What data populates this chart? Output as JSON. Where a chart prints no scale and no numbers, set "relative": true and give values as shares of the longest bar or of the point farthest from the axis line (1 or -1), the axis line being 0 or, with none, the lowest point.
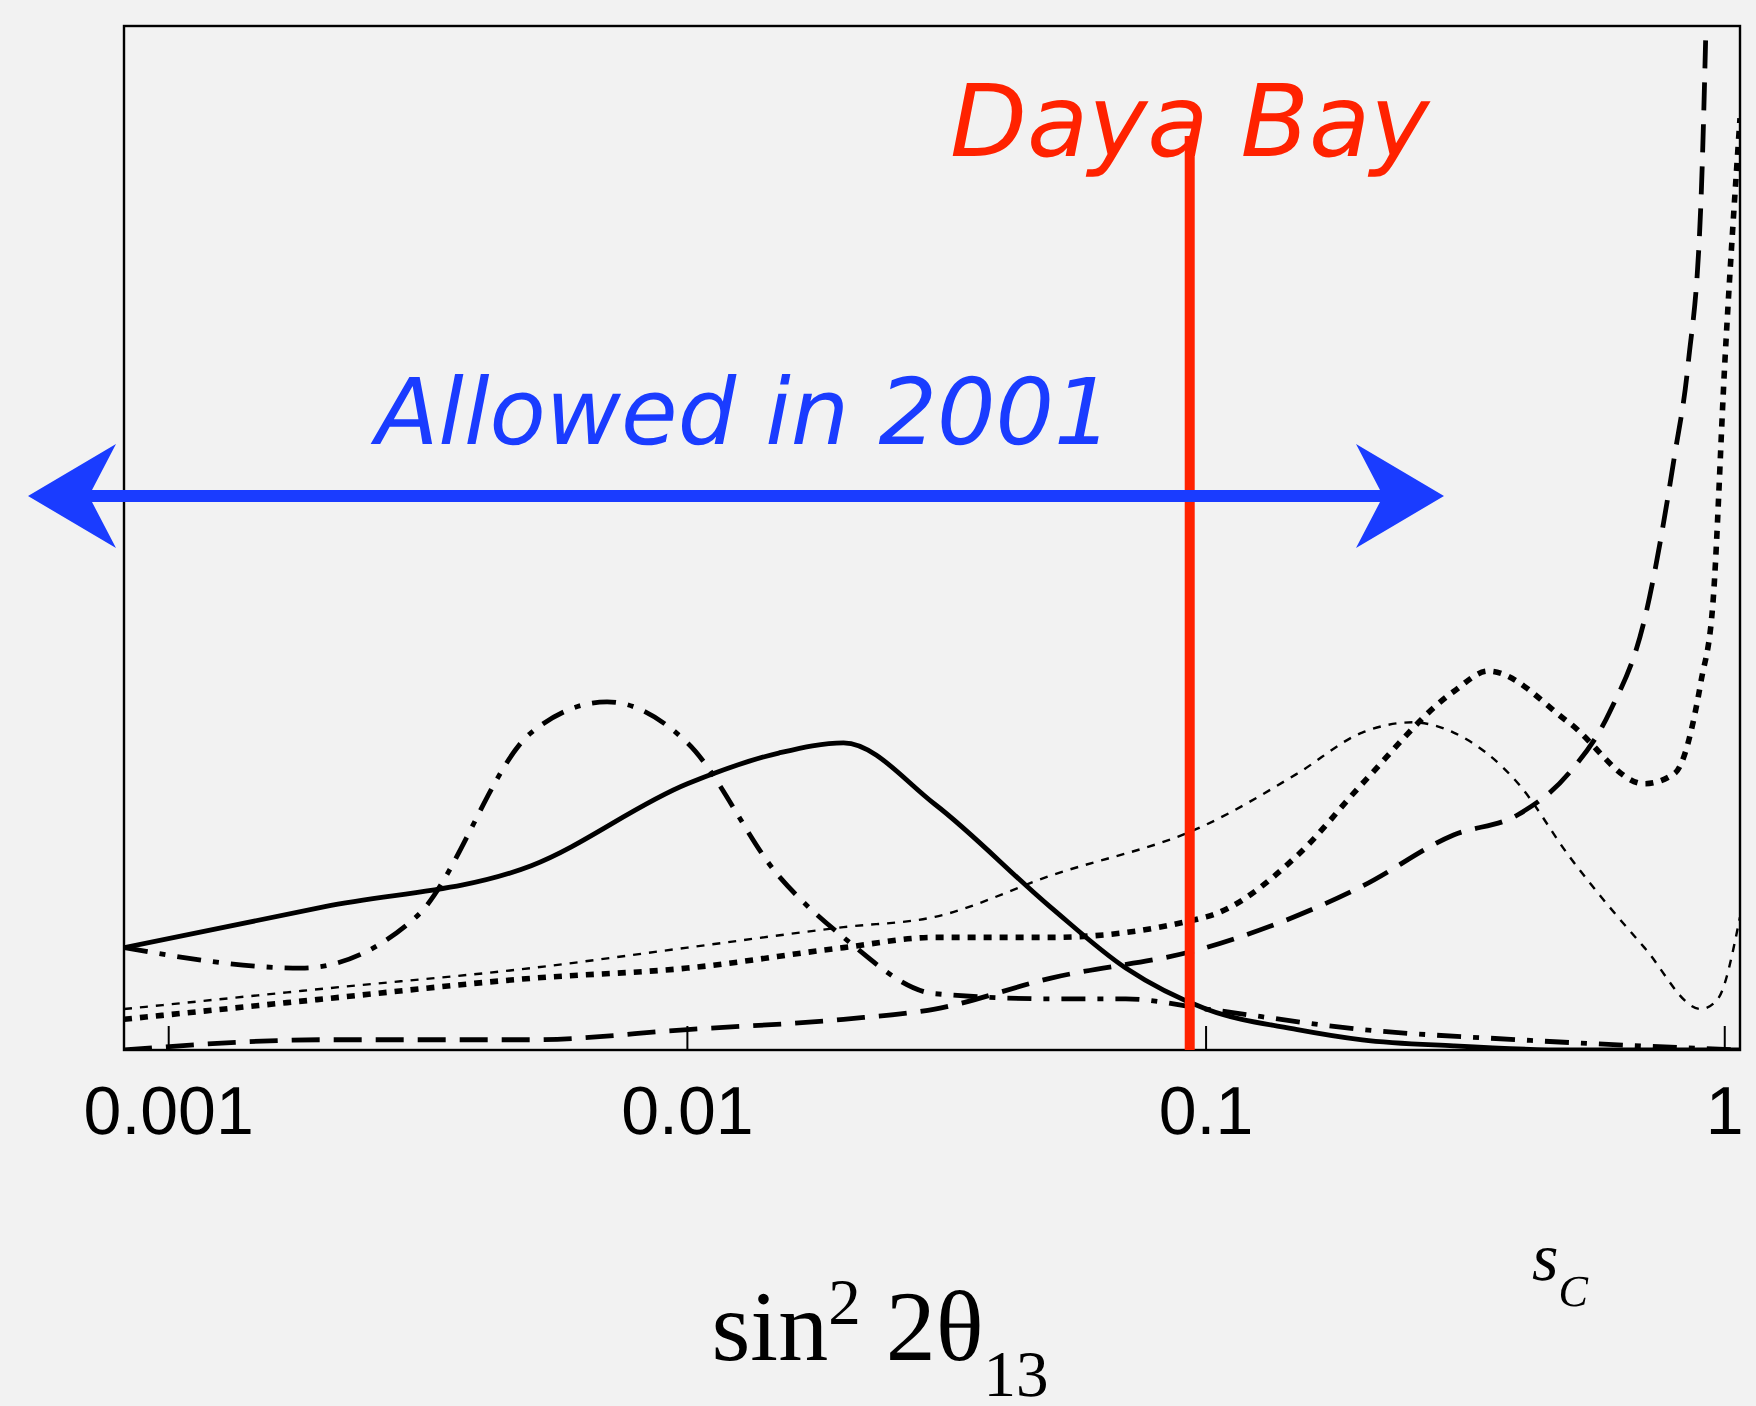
{
  "chart_data": {
    "type": "line",
    "relative": true,
    "xlabel": "sin$^{2}$ 2θ$_{13}$",
    "log": "x",
    "xlim": [
      0.00082,
      1.07
    ],
    "xticks": [
      0.001,
      0.01,
      0.1,
      1
    ],
    "grid": false,
    "series": [
      {
        "color": "#000000",
        "line_style": "solid",
        "x": [
          0.00082,
          0.002,
          0.005,
          0.01,
          0.015,
          0.02,
          0.03,
          0.05,
          0.07,
          0.1,
          0.15,
          0.2,
          0.3,
          0.5,
          1.07
        ],
        "values": [
          0.1,
          0.14,
          0.18,
          0.26,
          0.29,
          0.3,
          0.24,
          0.14,
          0.08,
          0.04,
          0.02,
          0.01,
          0.004,
          0,
          0
        ]
      },
      {
        "color": "#000000",
        "line_style": "dashdot",
        "x": [
          0.00082,
          0.0018,
          0.003,
          0.005,
          0.007,
          0.01,
          0.015,
          0.02,
          0.03,
          0.05,
          0.07,
          0.1,
          0.2,
          0.4,
          1.07
        ],
        "values": [
          0.1,
          0.08,
          0.13,
          0.31,
          0.34,
          0.3,
          0.17,
          0.11,
          0.055,
          0.05,
          0.05,
          0.04,
          0.02,
          0.01,
          0
        ]
      },
      {
        "color": "#000000",
        "line_style": "dashed",
        "x": [
          0.00082,
          0.002,
          0.005,
          0.01,
          0.02,
          0.03,
          0.05,
          0.1,
          0.2,
          0.3,
          0.4,
          0.5,
          0.6,
          0.7,
          0.8,
          0.85,
          0.9,
          0.92
        ],
        "values": [
          0,
          0.01,
          0.01,
          0.02,
          0.03,
          0.04,
          0.07,
          0.1,
          0.16,
          0.21,
          0.23,
          0.27,
          0.33,
          0.42,
          0.58,
          0.67,
          0.83,
          1
        ]
      },
      {
        "color": "#000000",
        "line_style": "dotted",
        "x": [
          0.00082,
          0.002,
          0.005,
          0.01,
          0.02,
          0.03,
          0.05,
          0.1,
          0.15,
          0.2,
          0.3,
          0.35,
          0.5,
          0.7,
          0.8,
          0.9,
          0.95,
          1,
          1.07
        ],
        "values": [
          0.03,
          0.05,
          0.07,
          0.08,
          0.1,
          0.11,
          0.11,
          0.13,
          0.19,
          0.26,
          0.35,
          0.37,
          0.32,
          0.26,
          0.27,
          0.36,
          0.44,
          0.67,
          0.91
        ]
      },
      {
        "color": "#000000",
        "line_style": "dotted",
        "x": [
          0.00082,
          0.002,
          0.005,
          0.01,
          0.02,
          0.03,
          0.05,
          0.1,
          0.15,
          0.2,
          0.25,
          0.3,
          0.4,
          0.5,
          0.7,
          0.9,
          0.97,
          1.07
        ],
        "values": [
          0.04,
          0.06,
          0.08,
          0.1,
          0.12,
          0.13,
          0.17,
          0.22,
          0.27,
          0.31,
          0.32,
          0.31,
          0.26,
          0.19,
          0.1,
          0.04,
          0.05,
          0.13
        ]
      }
    ],
    "ref_lines": [
      {
        "axis": "x",
        "value": 0.093,
        "label": "Daya Bay",
        "color": "#ff2200"
      }
    ],
    "annotations": [
      "Allowed in 2001",
      "s$_{C}$"
    ]
  }
}
